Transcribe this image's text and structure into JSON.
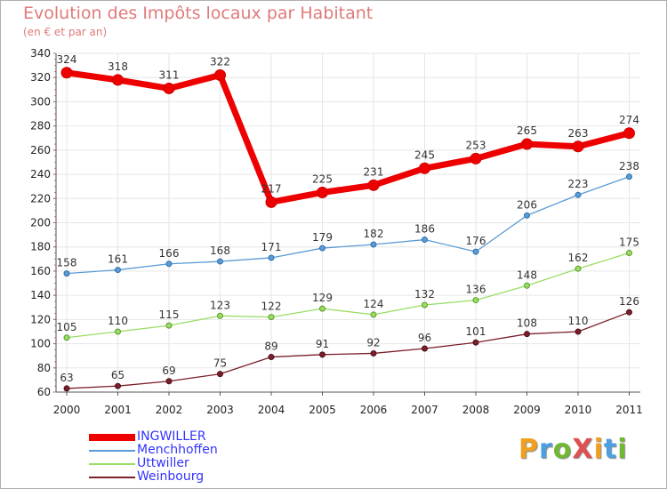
{
  "title": "Evolution des Impôts locaux par Habitant",
  "subtitle": "(en € et par an)",
  "logo": {
    "text": "ProXiti",
    "colors": [
      "#f0a020",
      "#4aa0e0",
      "#70b830",
      "#e05050",
      "#f0a020",
      "#4aa0e0",
      "#70b830"
    ]
  },
  "chart_data": {
    "type": "line",
    "title": "Evolution des Impôts locaux par Habitant",
    "subtitle": "(en € et par an)",
    "xlabel": "",
    "ylabel": "",
    "categories": [
      "2000",
      "2001",
      "2002",
      "2003",
      "2004",
      "2005",
      "2006",
      "2007",
      "2008",
      "2009",
      "2010",
      "2011"
    ],
    "ylim": [
      60,
      340
    ],
    "yticks": [
      60,
      80,
      100,
      120,
      140,
      160,
      180,
      200,
      220,
      240,
      260,
      280,
      300,
      320,
      340
    ],
    "grid": true,
    "legend_position": "bottom-left",
    "series": [
      {
        "name": "INGWILLER",
        "color": "#ee0000",
        "values": [
          324,
          318,
          311,
          322,
          217,
          225,
          231,
          245,
          253,
          265,
          263,
          274
        ]
      },
      {
        "name": "Menchhoffen",
        "color": "#5b9bd5",
        "values": [
          158,
          161,
          166,
          168,
          171,
          179,
          182,
          186,
          176,
          206,
          223,
          238
        ]
      },
      {
        "name": "Uttwiller",
        "color": "#99dd66",
        "values": [
          105,
          110,
          115,
          123,
          122,
          129,
          124,
          132,
          136,
          148,
          162,
          175
        ]
      },
      {
        "name": "Weinbourg",
        "color": "#7b1f2a",
        "values": [
          63,
          65,
          69,
          75,
          89,
          91,
          92,
          96,
          101,
          108,
          110,
          126
        ]
      }
    ]
  }
}
